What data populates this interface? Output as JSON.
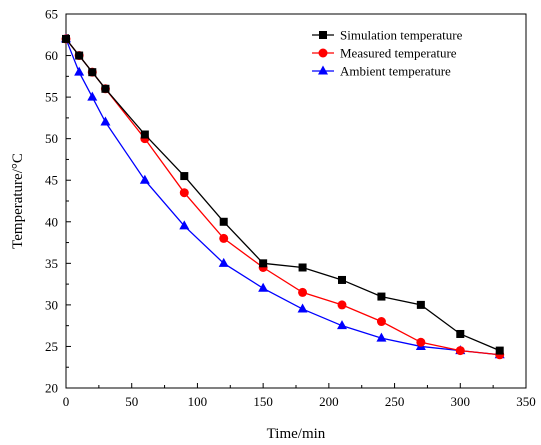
{
  "chart_data": {
    "type": "line",
    "xlabel": "Time/min",
    "ylabel": "Temperature/°C",
    "xlim": [
      0,
      350
    ],
    "ylim": [
      20,
      65
    ],
    "xticks": [
      "0",
      "50",
      "100",
      "150",
      "200",
      "250",
      "300",
      "350"
    ],
    "yticks": [
      "20",
      "25",
      "30",
      "35",
      "40",
      "45",
      "50",
      "55",
      "60",
      "65"
    ],
    "grid": false,
    "legend_position": "top-right",
    "series": [
      {
        "name": "Simulation temperature",
        "color": "#000000",
        "marker": "square",
        "x": [
          0,
          10,
          20,
          30,
          60,
          90,
          120,
          150,
          180,
          210,
          240,
          270,
          300,
          330
        ],
        "y": [
          62,
          60,
          58,
          56,
          50.5,
          45.5,
          40,
          35,
          34.5,
          33,
          31,
          30,
          26.5,
          24.5
        ]
      },
      {
        "name": "Measured temperature",
        "color": "#ff0000",
        "marker": "circle",
        "x": [
          0,
          10,
          20,
          30,
          60,
          90,
          120,
          150,
          180,
          210,
          240,
          270,
          300,
          330
        ],
        "y": [
          62,
          60,
          58,
          56,
          50,
          43.5,
          38,
          34.5,
          31.5,
          30,
          28,
          25.5,
          24.5,
          24
        ]
      },
      {
        "name": "Ambient temperature",
        "color": "#0000ff",
        "marker": "triangle",
        "x": [
          0,
          10,
          20,
          30,
          60,
          90,
          120,
          150,
          180,
          210,
          240,
          270,
          300,
          330
        ],
        "y": [
          62,
          58,
          55,
          52,
          45,
          39.5,
          35,
          32,
          29.5,
          27.5,
          26,
          25,
          24.5,
          24
        ]
      }
    ]
  }
}
